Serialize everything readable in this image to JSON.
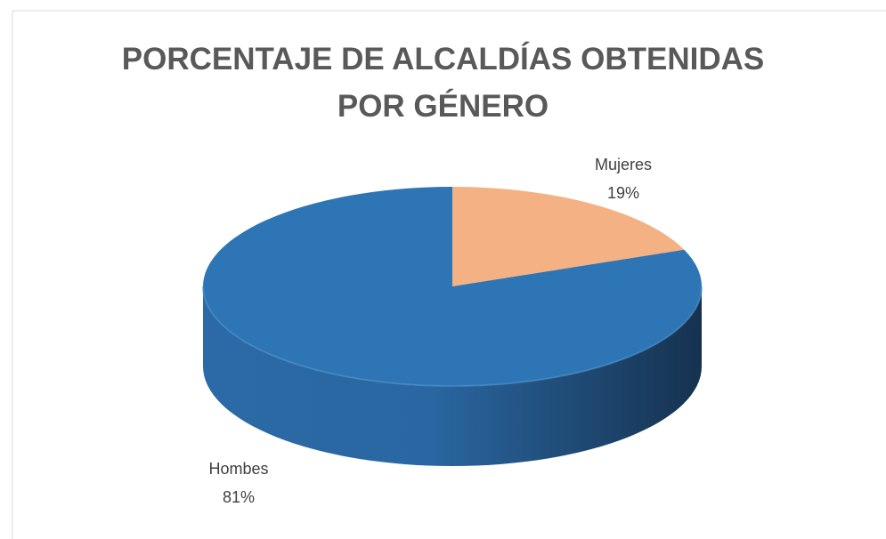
{
  "chart_data": {
    "type": "pie3d",
    "title": "PORCENTAJE DE ALCALDÍAS OBTENIDAS\nPOR GÉNERO",
    "categories": [
      "Mujeres",
      "Hombes"
    ],
    "values": [
      19,
      81
    ],
    "value_labels": [
      "19%",
      "81%"
    ],
    "colors": [
      "#f4b183",
      "#2e75b6"
    ]
  }
}
